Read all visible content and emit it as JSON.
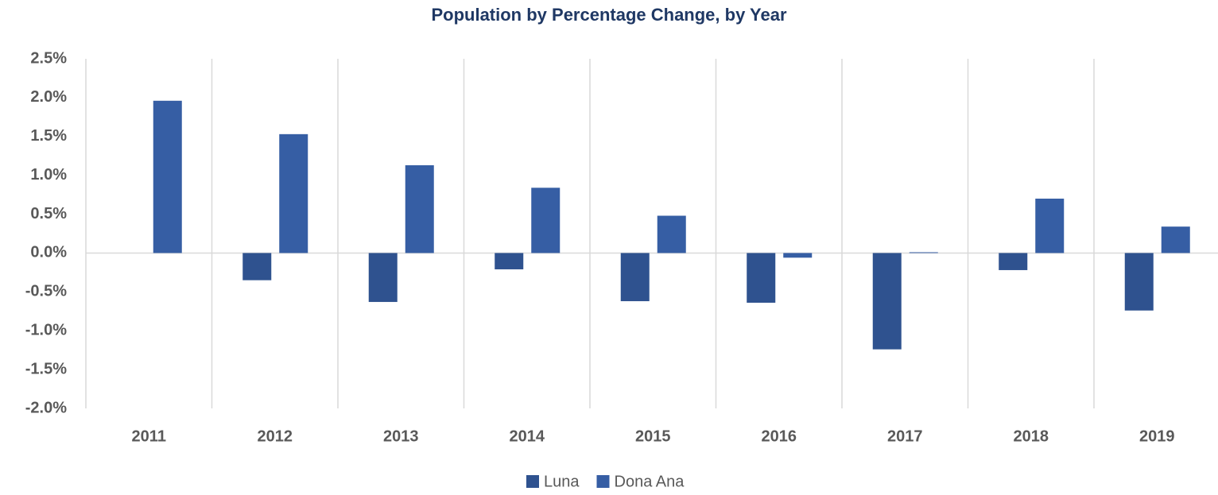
{
  "chart_data": {
    "type": "bar",
    "title": "Population by Percentage Change, by Year",
    "categories": [
      "2011",
      "2012",
      "2013",
      "2014",
      "2015",
      "2016",
      "2017",
      "2018",
      "2019"
    ],
    "series": [
      {
        "name": "Luna",
        "color": "#2f528f",
        "values": [
          0,
          -0.35,
          -0.63,
          -0.21,
          -0.62,
          -0.64,
          -1.24,
          -0.22,
          -0.74
        ]
      },
      {
        "name": "Dona Ana",
        "color": "#365ea4",
        "values": [
          1.96,
          1.53,
          1.13,
          0.84,
          0.48,
          -0.06,
          0.01,
          0.7,
          0.34
        ]
      }
    ],
    "ylim": [
      -2.0,
      2.5
    ],
    "yticks": [
      {
        "value": -2.0,
        "label": "-2.0%"
      },
      {
        "value": -1.5,
        "label": "-1.5%"
      },
      {
        "value": -1.0,
        "label": "-1.0%"
      },
      {
        "value": -0.5,
        "label": "-0.5%"
      },
      {
        "value": 0,
        "label": "0.0%"
      },
      {
        "value": 0.5,
        "label": "0.5%"
      },
      {
        "value": 1.0,
        "label": "1.0%"
      },
      {
        "value": 1.5,
        "label": "1.5%"
      },
      {
        "value": 2.0,
        "label": "2.0%"
      },
      {
        "value": 2.5,
        "label": "2.5%"
      }
    ],
    "grid": false,
    "legend": "bottom"
  }
}
